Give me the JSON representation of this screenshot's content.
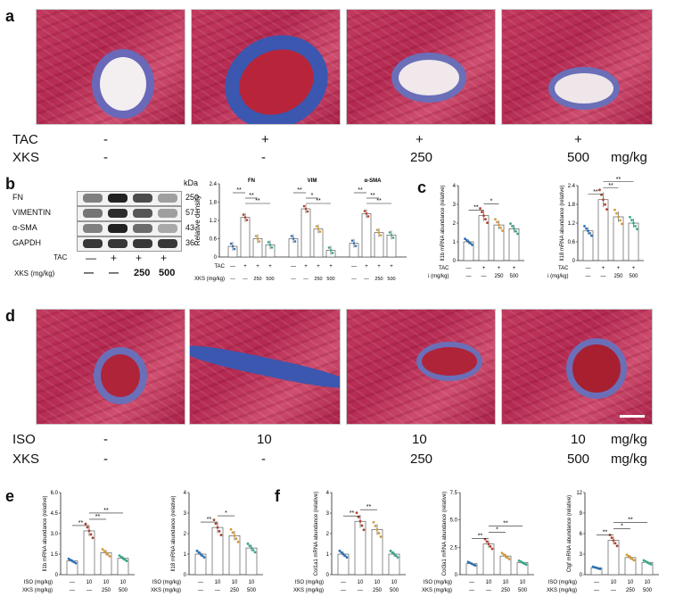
{
  "panels": {
    "a": "a",
    "b": "b",
    "c": "c",
    "d": "d",
    "e": "e",
    "f": "f"
  },
  "panel_a": {
    "row_labels": [
      "TAC",
      "XKS"
    ],
    "tac": [
      "-",
      "+",
      "+",
      "+"
    ],
    "xks": [
      "-",
      "-",
      "250",
      "500"
    ],
    "unit": "mg/kg"
  },
  "panel_d": {
    "row_labels": [
      "ISO",
      "XKS"
    ],
    "iso": [
      "-",
      "10",
      "10",
      "10"
    ],
    "xks": [
      "-",
      "-",
      "250",
      "500"
    ],
    "unit_iso": "mg/kg",
    "unit_xks": "mg/kg"
  },
  "western_blot": {
    "kda_header": "kDa",
    "rows": [
      {
        "label": "FN",
        "kda": "250"
      },
      {
        "label": "VIMENTIN",
        "kda": "57"
      },
      {
        "label": "α-SMA",
        "kda": "43"
      },
      {
        "label": "GAPDH",
        "kda": "36"
      }
    ],
    "tac_label": "TAC",
    "tac_signs": [
      "—",
      "+",
      "+",
      "+"
    ],
    "xks_label": "XKS (mg/kg)",
    "xks_signs": [
      "—",
      "—",
      "250",
      "500"
    ]
  },
  "bottom_axis": {
    "tac_label": "TAC",
    "xks_label": "XKS (mg/kg)",
    "iso_label": "ISO (mg/kg)",
    "tac_signs": [
      "—",
      "+",
      "+",
      "+"
    ],
    "xks_signs": [
      "—",
      "—",
      "250",
      "500"
    ],
    "iso_signs": [
      "—",
      "10",
      "10",
      "10"
    ]
  },
  "colors": {
    "g1": "#2e6fb6",
    "g2": "#b0412c",
    "g3": "#d39a3a",
    "g4": "#3aa58a",
    "trichrome_red": "#c23a5f",
    "collagen_blue": "#3b57b0"
  },
  "chart_data": [
    {
      "id": "b_density",
      "type": "bar",
      "ylabel": "Relative density",
      "ylim": [
        0,
        2.4
      ],
      "yticks": [
        "0",
        "0.6",
        "1.2",
        "1.8",
        "2.4"
      ],
      "groups": [
        {
          "name": "FN",
          "values": [
            0.35,
            1.3,
            0.6,
            0.4
          ],
          "sig": [
            "**",
            "**",
            "**"
          ]
        },
        {
          "name": "VIM",
          "values": [
            0.6,
            1.58,
            0.92,
            0.22
          ],
          "sig": [
            "**",
            "*",
            "**"
          ]
        },
        {
          "name": "α-SMA",
          "values": [
            0.45,
            1.42,
            0.8,
            0.72
          ],
          "sig": [
            "**",
            "**",
            "**"
          ]
        }
      ]
    },
    {
      "id": "c_il1b",
      "type": "bar",
      "ylabel": "Il1b mRNA abundance (relative)",
      "ylim": [
        0,
        4
      ],
      "yticks": [
        "0",
        "1",
        "2",
        "3",
        "4"
      ],
      "values": [
        1.0,
        2.4,
        1.9,
        1.7
      ],
      "sig": [
        "**",
        "*"
      ]
    },
    {
      "id": "c_il18",
      "type": "bar",
      "ylabel": "Il18 mRNA abundance (relative)",
      "ylim": [
        0,
        2.4
      ],
      "yticks": [
        "0",
        "0.6",
        "1.2",
        "1.8",
        "2.4"
      ],
      "values": [
        0.95,
        1.95,
        1.4,
        1.2
      ],
      "sig": [
        "**",
        "**",
        "**"
      ]
    },
    {
      "id": "e_il1b",
      "type": "bar",
      "ylabel": "Il1b mRNA abundance (relative)",
      "ylim": [
        0,
        6.0
      ],
      "yticks": [
        "0",
        "1.5",
        "3.0",
        "4.5",
        "6.0"
      ],
      "values": [
        1.0,
        3.2,
        1.6,
        1.2
      ],
      "sig": [
        "**",
        "**",
        "**"
      ]
    },
    {
      "id": "e_il18",
      "type": "bar",
      "ylabel": "Il18 mRNA abundance (relative)",
      "ylim": [
        0,
        4
      ],
      "yticks": [
        "0",
        "1",
        "2",
        "3",
        "4"
      ],
      "values": [
        1.0,
        2.3,
        1.9,
        1.3
      ],
      "sig": [
        "**",
        "*"
      ]
    },
    {
      "id": "f_col1a1",
      "type": "bar",
      "ylabel": "Col1a1 mRNA abundance (relative)",
      "ylim": [
        0,
        4
      ],
      "yticks": [
        "0",
        "1",
        "2",
        "3",
        "4"
      ],
      "values": [
        1.0,
        2.6,
        2.2,
        1.0
      ],
      "sig": [
        "**",
        "**"
      ]
    },
    {
      "id": "f_col3a1",
      "type": "bar",
      "ylabel": "Col3a1 mRNA abundance (relative)",
      "ylim": [
        0,
        7.5
      ],
      "yticks": [
        "0",
        "2.5",
        "5.0",
        "7.5"
      ],
      "values": [
        1.0,
        2.8,
        1.7,
        1.1
      ],
      "sig": [
        "**",
        "*",
        "**"
      ]
    },
    {
      "id": "f_ctgf",
      "type": "bar",
      "ylabel": "Ctgf mRNA abundance (relative)",
      "ylim": [
        0,
        12
      ],
      "yticks": [
        "0",
        "3",
        "6",
        "9",
        "12"
      ],
      "values": [
        1.0,
        5.0,
        2.5,
        1.8
      ],
      "sig": [
        "**",
        "*",
        "**"
      ]
    }
  ]
}
